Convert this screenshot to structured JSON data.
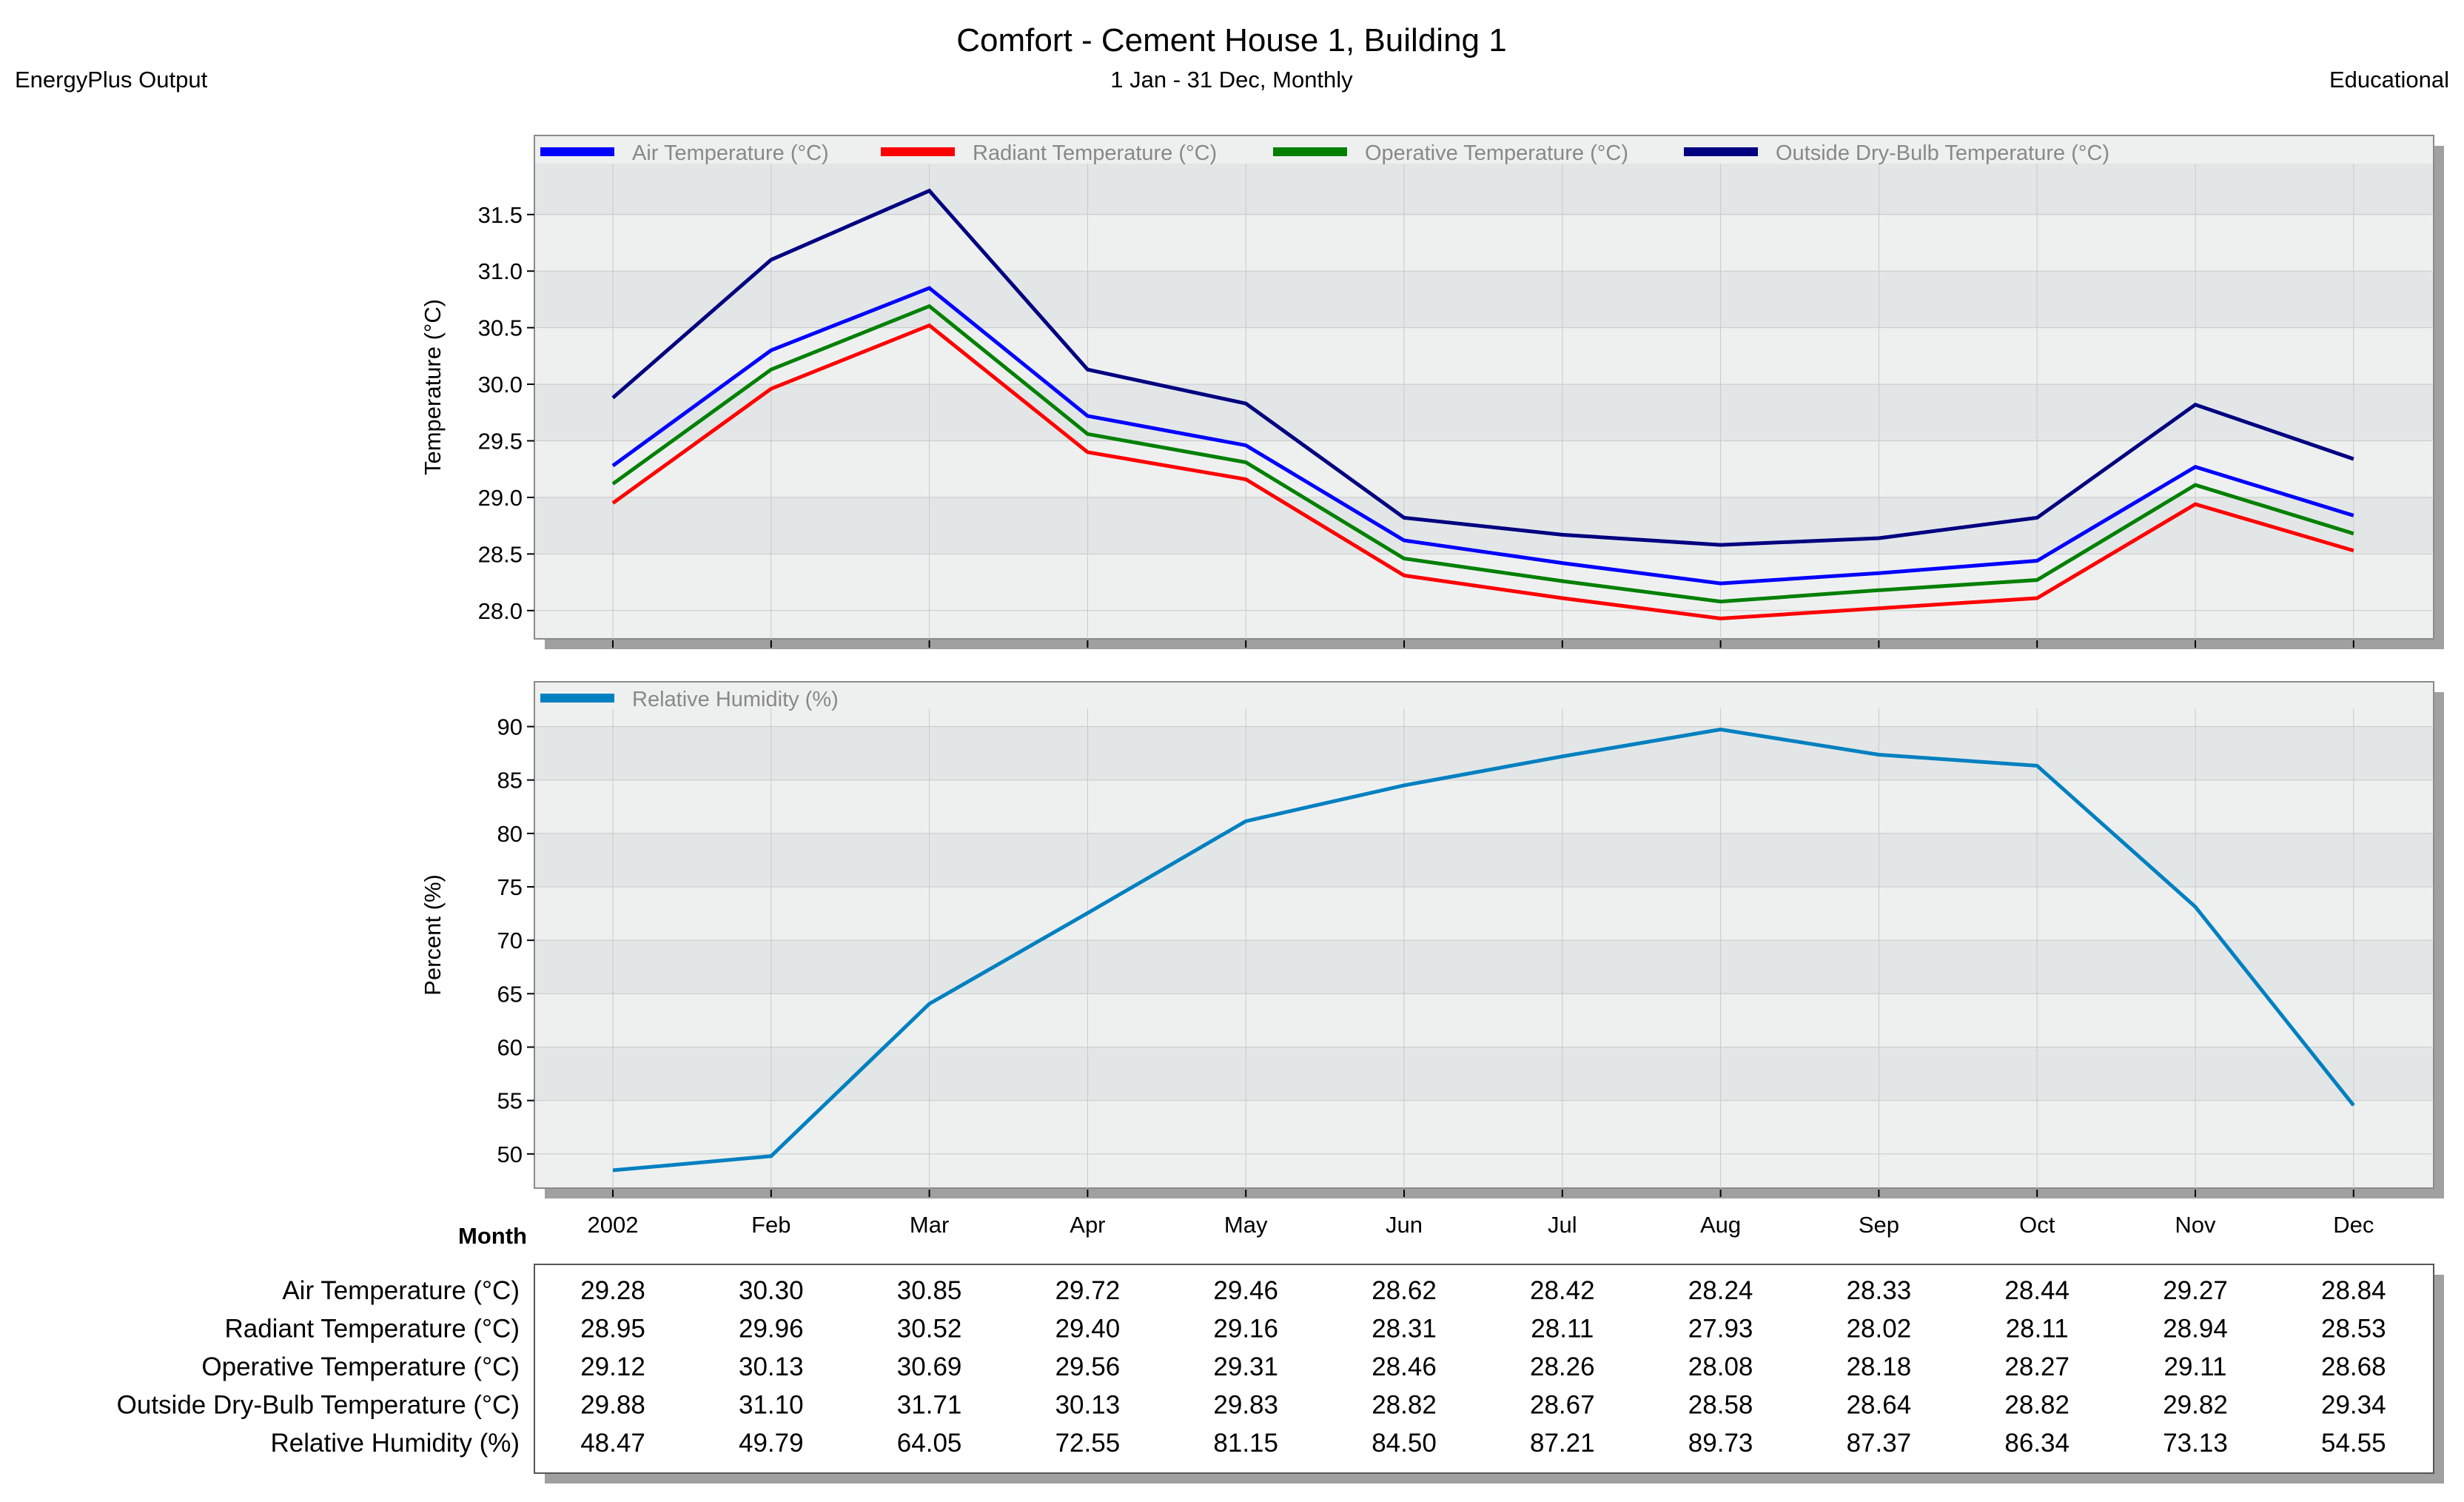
{
  "header": {
    "title": "Comfort - Cement House 1, Building 1",
    "subtitle": "1 Jan - 31 Dec, Monthly",
    "left_label": "EnergyPlus Output",
    "right_label": "Educational"
  },
  "colors": {
    "air": "#0000ff",
    "radiant": "#ff0000",
    "operative": "#008000",
    "outside": "#000080",
    "humidity": "#0080c0",
    "plot_bg": "#eef0f0",
    "band_bg": "#e3e6e7",
    "grid": "#c8c8c8",
    "shadow": "#a0a0a0"
  },
  "table": {
    "header_label": "Month",
    "rows": [
      {
        "label": "Air Temperature (°C)",
        "values": [
          "29.28",
          "30.30",
          "30.85",
          "29.72",
          "29.46",
          "28.62",
          "28.42",
          "28.24",
          "28.33",
          "28.44",
          "29.27",
          "28.84"
        ]
      },
      {
        "label": "Radiant Temperature (°C)",
        "values": [
          "28.95",
          "29.96",
          "30.52",
          "29.40",
          "29.16",
          "28.31",
          "28.11",
          "27.93",
          "28.02",
          "28.11",
          "28.94",
          "28.53"
        ]
      },
      {
        "label": "Operative Temperature (°C)",
        "values": [
          "29.12",
          "30.13",
          "30.69",
          "29.56",
          "29.31",
          "28.46",
          "28.26",
          "28.08",
          "28.18",
          "28.27",
          "29.11",
          "28.68"
        ]
      },
      {
        "label": "Outside Dry-Bulb Temperature (°C)",
        "values": [
          "29.88",
          "31.10",
          "31.71",
          "30.13",
          "29.83",
          "28.82",
          "28.67",
          "28.58",
          "28.64",
          "28.82",
          "29.82",
          "29.34"
        ]
      },
      {
        "label": "Relative Humidity (%)",
        "values": [
          "48.47",
          "49.79",
          "64.05",
          "72.55",
          "81.15",
          "84.50",
          "87.21",
          "89.73",
          "87.37",
          "86.34",
          "73.13",
          "54.55"
        ]
      }
    ]
  },
  "chart_data": [
    {
      "type": "line",
      "title": "Comfort - Cement House 1, Building 1",
      "ylabel": "Temperature (°C)",
      "xlabel": "",
      "categories": [
        "2002",
        "Feb",
        "Mar",
        "Apr",
        "May",
        "Jun",
        "Jul",
        "Aug",
        "Sep",
        "Oct",
        "Nov",
        "Dec"
      ],
      "ylim": [
        27.75,
        31.95
      ],
      "yticks": [
        "28.0",
        "28.5",
        "29.0",
        "29.5",
        "30.0",
        "30.5",
        "31.0",
        "31.5"
      ],
      "legend_position": "top",
      "series": [
        {
          "name": "Air Temperature (°C)",
          "color": "#0000ff",
          "values": [
            29.28,
            30.3,
            30.85,
            29.72,
            29.46,
            28.62,
            28.42,
            28.24,
            28.33,
            28.44,
            29.27,
            28.84
          ]
        },
        {
          "name": "Radiant Temperature (°C)",
          "color": "#ff0000",
          "values": [
            28.95,
            29.96,
            30.52,
            29.4,
            29.16,
            28.31,
            28.11,
            27.93,
            28.02,
            28.11,
            28.94,
            28.53
          ]
        },
        {
          "name": "Operative Temperature (°C)",
          "color": "#008000",
          "values": [
            29.12,
            30.13,
            30.69,
            29.56,
            29.31,
            28.46,
            28.26,
            28.08,
            28.18,
            28.27,
            29.11,
            28.68
          ]
        },
        {
          "name": "Outside Dry-Bulb Temperature (°C)",
          "color": "#000080",
          "values": [
            29.88,
            31.1,
            31.71,
            30.13,
            29.83,
            28.82,
            28.67,
            28.58,
            28.64,
            28.82,
            29.82,
            29.34
          ]
        }
      ]
    },
    {
      "type": "line",
      "ylabel": "Percent (%)",
      "xlabel": "",
      "categories": [
        "2002",
        "Feb",
        "Mar",
        "Apr",
        "May",
        "Jun",
        "Jul",
        "Aug",
        "Sep",
        "Oct",
        "Nov",
        "Dec"
      ],
      "ylim": [
        46.8,
        91.7
      ],
      "yticks": [
        "50",
        "55",
        "60",
        "65",
        "70",
        "75",
        "80",
        "85",
        "90"
      ],
      "legend_position": "top",
      "series": [
        {
          "name": "Relative Humidity (%)",
          "color": "#0080c0",
          "values": [
            48.47,
            49.79,
            64.05,
            72.55,
            81.15,
            84.5,
            87.21,
            89.73,
            87.37,
            86.34,
            73.13,
            54.55
          ]
        }
      ]
    }
  ]
}
